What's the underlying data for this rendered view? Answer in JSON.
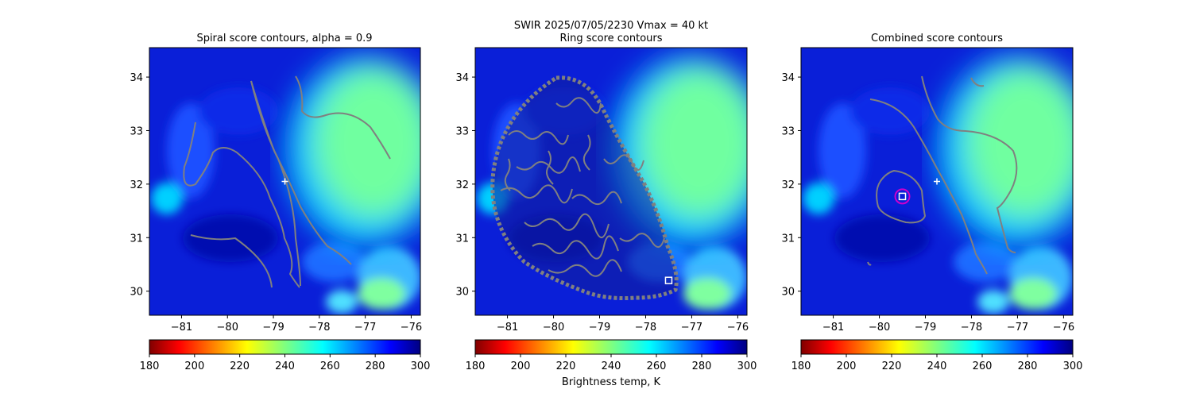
{
  "suptitle_line1": "SWIR  2025/07/05/2230    Vmax = 40 kt",
  "colorbar_label": "Brightness temp, K",
  "chart_data": [
    {
      "type": "heatmap",
      "title": "Spiral score contours, alpha =  0.9",
      "x_ticks": [
        -81,
        -80,
        -79,
        -78,
        -77,
        -76
      ],
      "y_ticks": [
        30,
        31,
        32,
        33,
        34
      ],
      "xlim": [
        -81.7,
        -75.8
      ],
      "ylim": [
        29.55,
        34.55
      ],
      "colorbar": {
        "cmap": "jet_r",
        "range": [
          180,
          300
        ],
        "ticks": [
          180,
          200,
          220,
          240,
          260,
          280,
          300
        ]
      },
      "markers": [
        {
          "type": "plus",
          "lon": -78.75,
          "lat": 32.05,
          "color": "#ffffff"
        }
      ]
    },
    {
      "type": "heatmap",
      "title": "Ring score contours",
      "x_ticks": [
        -81,
        -80,
        -79,
        -78,
        -77,
        -76
      ],
      "y_ticks": [
        30,
        31,
        32,
        33,
        34
      ],
      "xlim": [
        -81.7,
        -75.8
      ],
      "ylim": [
        29.55,
        34.55
      ],
      "colorbar": {
        "cmap": "jet_r",
        "range": [
          180,
          300
        ],
        "ticks": [
          180,
          200,
          220,
          240,
          260,
          280,
          300
        ]
      },
      "markers": [
        {
          "type": "square",
          "lon": -77.5,
          "lat": 30.2,
          "color": "#ffffff"
        }
      ]
    },
    {
      "type": "heatmap",
      "title": "Combined score contours",
      "x_ticks": [
        -81,
        -80,
        -79,
        -78,
        -77,
        -76
      ],
      "y_ticks": [
        30,
        31,
        32,
        33,
        34
      ],
      "xlim": [
        -81.7,
        -75.8
      ],
      "ylim": [
        29.55,
        34.55
      ],
      "colorbar": {
        "cmap": "jet_r",
        "range": [
          180,
          300
        ],
        "ticks": [
          180,
          200,
          220,
          240,
          260,
          280,
          300
        ]
      },
      "markers": [
        {
          "type": "plus",
          "lon": -78.75,
          "lat": 32.05,
          "color": "#ffffff"
        },
        {
          "type": "circle",
          "lon": -79.5,
          "lat": 31.77,
          "color": "#cc00cc"
        },
        {
          "type": "square",
          "lon": -79.5,
          "lat": 31.77,
          "color": "#ffffff"
        }
      ]
    }
  ]
}
